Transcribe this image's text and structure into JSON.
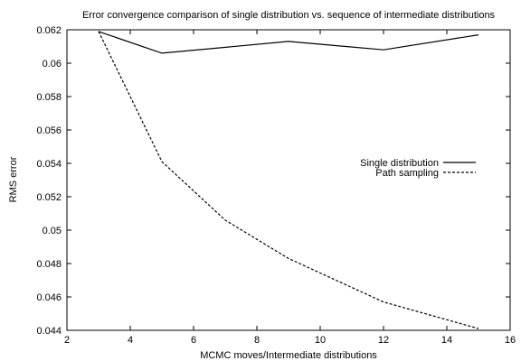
{
  "chart_data": {
    "type": "line",
    "title": "Error convergence comparison of single distribution vs. sequence of intermediate distributions",
    "xlabel": "MCMC moves/Intermediate distributions",
    "ylabel": "RMS error",
    "xlim": [
      2,
      16
    ],
    "ylim": [
      0.044,
      0.062
    ],
    "xticks": [
      2,
      4,
      6,
      8,
      10,
      12,
      14,
      16
    ],
    "yticks": [
      0.044,
      0.046,
      0.048,
      0.05,
      0.052,
      0.054,
      0.056,
      0.058,
      0.06,
      0.062
    ],
    "yticklabels": [
      "0.044",
      "0.046",
      "0.048",
      "0.05",
      "0.052",
      "0.054",
      "0.056",
      "0.058",
      "0.06",
      "0.062"
    ],
    "grid": false,
    "legend_position": "right",
    "series": [
      {
        "name": "Single distribution",
        "line_style": "solid",
        "color": "#000000",
        "x": [
          3,
          5,
          9,
          12,
          15
        ],
        "y": [
          0.0619,
          0.0606,
          0.0613,
          0.0608,
          0.0617
        ]
      },
      {
        "name": "Path sampling",
        "line_style": "dashed",
        "color": "#000000",
        "x": [
          3,
          5,
          7,
          9,
          12,
          15
        ],
        "y": [
          0.0619,
          0.0541,
          0.0506,
          0.0483,
          0.0457,
          0.0441
        ]
      }
    ]
  }
}
